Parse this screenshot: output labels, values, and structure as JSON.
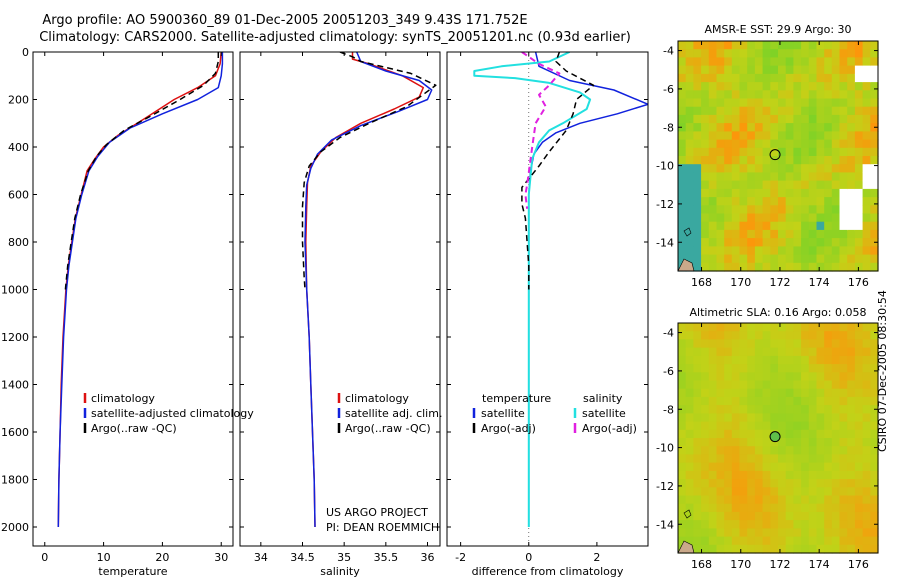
{
  "header": {
    "line1": "Argo profile: AO 5900360_89 01-Dec-2005 20051203_349 9.43S 171.752E",
    "line2": "Climatology: CARS2000. Satellite-adjusted climatology: synTS_20051201.nc (0.93d earlier)"
  },
  "credit": "CSIRO 07-Dec-2005 08:30:54",
  "project": {
    "line1": "US ARGO PROJECT",
    "line2": "PI: DEAN ROEMMICH"
  },
  "colors": {
    "clim": "#dd1111",
    "sat": "#1122dd",
    "argo": "#000000",
    "sal_sat": "#22e0e0",
    "sal_argo": "#e020e0"
  },
  "chart_data": [
    {
      "type": "line",
      "id": "temperature",
      "xlabel": "temperature",
      "ylabel": "",
      "xlim": [
        -2,
        32
      ],
      "ylim": [
        2080,
        0
      ],
      "xticks": [
        "0",
        "10",
        "20",
        "30"
      ],
      "xtick_values": [
        0,
        10,
        20,
        30
      ],
      "yticks": [
        "0",
        "200",
        "400",
        "600",
        "800",
        "1000",
        "1200",
        "1400",
        "1600",
        "1800",
        "2000"
      ],
      "ytick_values": [
        0,
        200,
        400,
        600,
        800,
        1000,
        1200,
        1400,
        1600,
        1800,
        2000
      ],
      "legend": [
        "climatology",
        "satellite-adjusted climatology",
        "Argo(..raw -QC)"
      ],
      "series": [
        {
          "name": "climatology",
          "style": "clim",
          "points": [
            [
              30,
              0
            ],
            [
              29.8,
              50
            ],
            [
              29,
              100
            ],
            [
              26,
              150
            ],
            [
              22,
              200
            ],
            [
              17,
              280
            ],
            [
              12.5,
              350
            ],
            [
              10,
              400
            ],
            [
              8.5,
              450
            ],
            [
              7.2,
              500
            ],
            [
              6.2,
              600
            ],
            [
              5.2,
              700
            ],
            [
              4.6,
              800
            ],
            [
              4.0,
              900
            ],
            [
              3.6,
              1000
            ],
            [
              3.1,
              1200
            ],
            [
              2.8,
              1400
            ],
            [
              2.6,
              1600
            ],
            [
              2.4,
              1800
            ],
            [
              2.3,
              2000
            ]
          ]
        },
        {
          "name": "satellite-adjusted climatology",
          "style": "sat",
          "points": [
            [
              30.2,
              0
            ],
            [
              30.2,
              50
            ],
            [
              30,
              100
            ],
            [
              29.5,
              150
            ],
            [
              26,
              200
            ],
            [
              20,
              260
            ],
            [
              14.5,
              320
            ],
            [
              11,
              380
            ],
            [
              9,
              440
            ],
            [
              7.5,
              500
            ],
            [
              6.3,
              600
            ],
            [
              5.3,
              700
            ],
            [
              4.7,
              800
            ],
            [
              4.1,
              900
            ],
            [
              3.7,
              1000
            ],
            [
              3.2,
              1200
            ],
            [
              2.9,
              1400
            ],
            [
              2.6,
              1600
            ],
            [
              2.4,
              1800
            ],
            [
              2.3,
              2000
            ]
          ]
        },
        {
          "name": "Argo(..raw -QC)",
          "style": "argo",
          "points": [
            [
              29.5,
              0
            ],
            [
              29.5,
              40
            ],
            [
              29,
              90
            ],
            [
              27,
              140
            ],
            [
              23,
              200
            ],
            [
              18,
              270
            ],
            [
              13.5,
              330
            ],
            [
              10.5,
              390
            ],
            [
              8.8,
              440
            ],
            [
              7.4,
              500
            ],
            [
              6.1,
              600
            ],
            [
              5.1,
              700
            ],
            [
              4.5,
              800
            ],
            [
              3.9,
              900
            ],
            [
              3.5,
              1000
            ]
          ]
        }
      ]
    },
    {
      "type": "line",
      "id": "salinity",
      "xlabel": "salinity",
      "ylabel": "",
      "xlim": [
        33.75,
        36.15
      ],
      "ylim": [
        2080,
        0
      ],
      "xticks": [
        "34",
        "34.5",
        "35",
        "35.5",
        "36"
      ],
      "xtick_values": [
        34,
        34.5,
        35,
        35.5,
        36
      ],
      "legend": [
        "climatology",
        "satellite adj. clim.",
        "Argo(..raw -QC)"
      ],
      "series": [
        {
          "name": "climatology",
          "style": "clim",
          "points": [
            [
              35.1,
              0
            ],
            [
              35.1,
              30
            ],
            [
              35.3,
              50
            ],
            [
              35.7,
              100
            ],
            [
              35.95,
              150
            ],
            [
              35.9,
              190
            ],
            [
              35.6,
              240
            ],
            [
              35.2,
              300
            ],
            [
              34.9,
              360
            ],
            [
              34.72,
              420
            ],
            [
              34.6,
              480
            ],
            [
              34.56,
              550
            ],
            [
              34.55,
              650
            ],
            [
              34.54,
              800
            ],
            [
              34.55,
              1000
            ],
            [
              34.58,
              1200
            ],
            [
              34.6,
              1400
            ],
            [
              34.62,
              1600
            ],
            [
              34.64,
              1800
            ],
            [
              34.65,
              2000
            ]
          ]
        },
        {
          "name": "satellite adj. clim.",
          "style": "sat",
          "points": [
            [
              35.15,
              0
            ],
            [
              35.2,
              40
            ],
            [
              35.5,
              80
            ],
            [
              35.9,
              120
            ],
            [
              36.05,
              160
            ],
            [
              36.0,
              200
            ],
            [
              35.65,
              250
            ],
            [
              35.2,
              310
            ],
            [
              34.85,
              370
            ],
            [
              34.68,
              430
            ],
            [
              34.6,
              490
            ],
            [
              34.55,
              560
            ],
            [
              34.54,
              650
            ],
            [
              34.53,
              800
            ],
            [
              34.55,
              1000
            ],
            [
              34.58,
              1200
            ],
            [
              34.6,
              1400
            ],
            [
              34.62,
              1600
            ],
            [
              34.64,
              1800
            ],
            [
              34.65,
              2000
            ]
          ]
        },
        {
          "name": "Argo(..raw -QC)",
          "style": "argo",
          "points": [
            [
              34.95,
              0
            ],
            [
              35.1,
              20
            ],
            [
              35.2,
              40
            ],
            [
              35.8,
              90
            ],
            [
              36.1,
              140
            ],
            [
              35.75,
              230
            ],
            [
              35.3,
              300
            ],
            [
              34.95,
              360
            ],
            [
              34.72,
              420
            ],
            [
              34.58,
              480
            ],
            [
              34.52,
              550
            ],
            [
              34.5,
              650
            ],
            [
              34.5,
              800
            ],
            [
              34.52,
              950
            ],
            [
              34.53,
              1000
            ]
          ]
        }
      ]
    },
    {
      "type": "line",
      "id": "difference",
      "xlabel": "difference from climatology",
      "ylabel": "",
      "xlim": [
        -2.4,
        3.5
      ],
      "ylim": [
        2080,
        0
      ],
      "xticks": [
        "-2",
        "0",
        "2"
      ],
      "xtick_values": [
        -2,
        0,
        2
      ],
      "legend_temperature": {
        "heading": "temperature",
        "items": [
          "satellite",
          "Argo(-adj)"
        ]
      },
      "legend_salinity": {
        "heading": "salinity",
        "items": [
          "satellite",
          "Argo(-adj)"
        ]
      },
      "series": [
        {
          "name": "temperature satellite",
          "style": "sat",
          "points": [
            [
              0.2,
              0
            ],
            [
              0.3,
              60
            ],
            [
              1.2,
              120
            ],
            [
              2.5,
              160
            ],
            [
              3.5,
              220
            ],
            [
              2.6,
              260
            ],
            [
              1.5,
              300
            ],
            [
              0.8,
              340
            ],
            [
              0.4,
              380
            ],
            [
              0.15,
              430
            ],
            [
              0.05,
              500
            ],
            [
              0.0,
              600
            ],
            [
              0.0,
              800
            ],
            [
              0.0,
              1000
            ],
            [
              0.0,
              1400
            ],
            [
              0.0,
              1800
            ],
            [
              0.0,
              2000
            ]
          ]
        },
        {
          "name": "salinity satellite",
          "style": "sal_sat",
          "points": [
            [
              1.2,
              0
            ],
            [
              0.6,
              40
            ],
            [
              -0.8,
              60
            ],
            [
              -1.6,
              80
            ],
            [
              -1.6,
              100
            ],
            [
              -0.4,
              110
            ],
            [
              0.6,
              130
            ],
            [
              1.5,
              170
            ],
            [
              1.8,
              200
            ],
            [
              1.7,
              240
            ],
            [
              1.0,
              300
            ],
            [
              0.6,
              330
            ],
            [
              0.3,
              380
            ],
            [
              0.1,
              450
            ],
            [
              0.0,
              600
            ],
            [
              0.0,
              1000
            ],
            [
              0.0,
              1500
            ],
            [
              0.0,
              2000
            ]
          ]
        },
        {
          "name": "temperature Argo(-adj)",
          "style": "argo",
          "points": [
            [
              0.9,
              0
            ],
            [
              0.8,
              40
            ],
            [
              1.1,
              80
            ],
            [
              1.9,
              140
            ],
            [
              1.4,
              200
            ],
            [
              1.3,
              260
            ],
            [
              1.1,
              330
            ],
            [
              0.6,
              420
            ],
            [
              0.3,
              480
            ],
            [
              -0.2,
              570
            ],
            [
              -0.2,
              640
            ],
            [
              -0.1,
              700
            ],
            [
              -0.05,
              800
            ],
            [
              0.0,
              900
            ],
            [
              0.0,
              1000
            ]
          ]
        },
        {
          "name": "salinity Argo(-adj)",
          "style": "sal_argo",
          "points": [
            [
              -0.2,
              0
            ],
            [
              0.3,
              50
            ],
            [
              0.9,
              90
            ],
            [
              0.6,
              140
            ],
            [
              0.3,
              180
            ],
            [
              0.5,
              230
            ],
            [
              0.2,
              300
            ],
            [
              0.1,
              400
            ],
            [
              -0.05,
              560
            ],
            [
              -0.1,
              600
            ],
            [
              -0.05,
              660
            ]
          ]
        }
      ]
    },
    {
      "type": "heatmap",
      "id": "sst",
      "title": "AMSR-E SST: 29.9 Argo: 30",
      "xlim": [
        166.8,
        177
      ],
      "ylim": [
        -15.5,
        -3.5
      ],
      "xticks": [
        "168",
        "170",
        "172",
        "174",
        "176"
      ],
      "xtick_values": [
        168,
        170,
        172,
        174,
        176
      ],
      "yticks": [
        "-4",
        "-6",
        "-8",
        "-10",
        "-12",
        "-14"
      ],
      "ytick_values": [
        -4,
        -6,
        -8,
        -10,
        -12,
        -14
      ],
      "marker": {
        "lon": 171.75,
        "lat": -9.43
      }
    },
    {
      "type": "heatmap",
      "id": "sla",
      "title": "Altimetric SLA: 0.16 Argo: 0.058",
      "xlim": [
        166.8,
        177
      ],
      "ylim": [
        -15.5,
        -3.5
      ],
      "xticks": [
        "168",
        "170",
        "172",
        "174",
        "176"
      ],
      "xtick_values": [
        168,
        170,
        172,
        174,
        176
      ],
      "yticks": [
        "-4",
        "-6",
        "-8",
        "-10",
        "-12",
        "-14"
      ],
      "ytick_values": [
        -4,
        -6,
        -8,
        -10,
        -12,
        -14
      ],
      "marker": {
        "lon": 171.75,
        "lat": -9.43
      }
    }
  ]
}
